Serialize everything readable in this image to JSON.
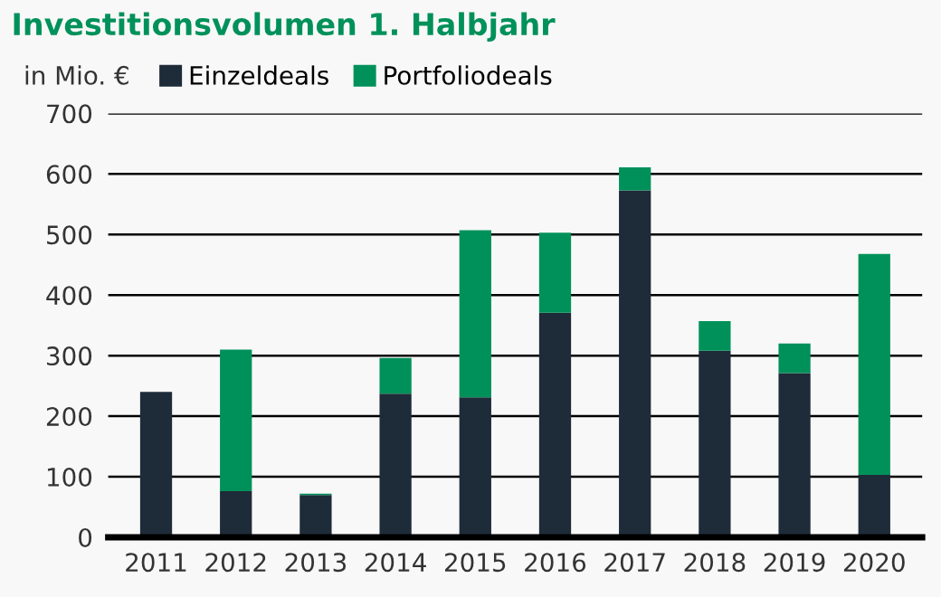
{
  "chart_data": {
    "type": "bar",
    "title": "Investitionsvolumen 1. Halbjahr",
    "ylabel": "in Mio. €",
    "categories": [
      "2011",
      "2012",
      "2013",
      "2014",
      "2015",
      "2016",
      "2017",
      "2018",
      "2019",
      "2020"
    ],
    "series": [
      {
        "name": "Einzeldeals",
        "color": "#1e2b38",
        "values": [
          240,
          76,
          70,
          237,
          231,
          371,
          573,
          308,
          271,
          103
        ]
      },
      {
        "name": "Portfoliodeals",
        "color": "#00915a",
        "values": [
          0,
          234,
          2,
          59,
          276,
          132,
          38,
          49,
          49,
          365
        ]
      }
    ],
    "stacked": true,
    "ylim": [
      0,
      700
    ],
    "yticks": [
      0,
      100,
      200,
      300,
      400,
      500,
      600,
      700
    ],
    "grid": "y",
    "legend": "top left"
  }
}
